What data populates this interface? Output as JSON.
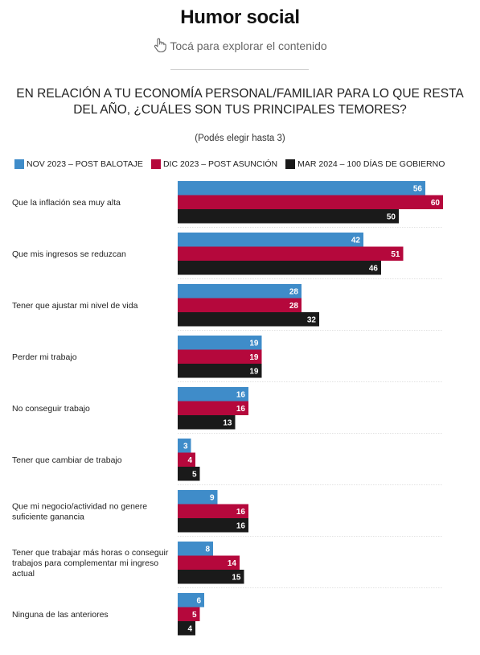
{
  "header": {
    "title": "Humor social",
    "hint": "Tocá para explorar el contenido",
    "question": "EN RELACIÓN A TU ECONOMÍA PERSONAL/FAMILIAR PARA LO QUE RESTA DEL AÑO, ¿CUÁLES SON TUS PRINCIPALES TEMORES?",
    "note": "(Podés elegir hasta 3)"
  },
  "icons": {
    "hint_icon": "hand-pointer-icon"
  },
  "colors": {
    "nov": "#3f8cc9",
    "dic": "#b5083c",
    "mar": "#1a1a1a"
  },
  "chart_data": {
    "type": "bar",
    "orientation": "horizontal",
    "categories": [
      "Que la inflación sea muy alta",
      "Que mis ingresos se reduzcan",
      "Tener que ajustar mi nivel de vida",
      "Perder mi trabajo",
      "No conseguir trabajo",
      "Tener que cambiar de trabajo",
      "Que mi negocio/actividad no genere suficiente ganancia",
      "Tener que trabajar más horas o conseguir trabajos para complementar mi ingreso actual",
      "Ninguna de las anteriores"
    ],
    "series": [
      {
        "name": "NOV 2023 – POST BALOTAJE",
        "color": "#3f8cc9",
        "values": [
          56,
          42,
          28,
          19,
          16,
          3,
          9,
          8,
          6
        ]
      },
      {
        "name": "DIC 2023 – POST ASUNCIÓN",
        "color": "#b5083c",
        "values": [
          60,
          51,
          28,
          19,
          16,
          4,
          16,
          14,
          5
        ]
      },
      {
        "name": "MAR 2024 – 100 DÍAS DE GOBIERNO",
        "color": "#1a1a1a",
        "values": [
          50,
          46,
          32,
          19,
          13,
          5,
          16,
          15,
          4
        ]
      }
    ],
    "xlim": [
      0,
      60
    ],
    "data_labels": true,
    "legend_position": "top",
    "grid": false
  }
}
